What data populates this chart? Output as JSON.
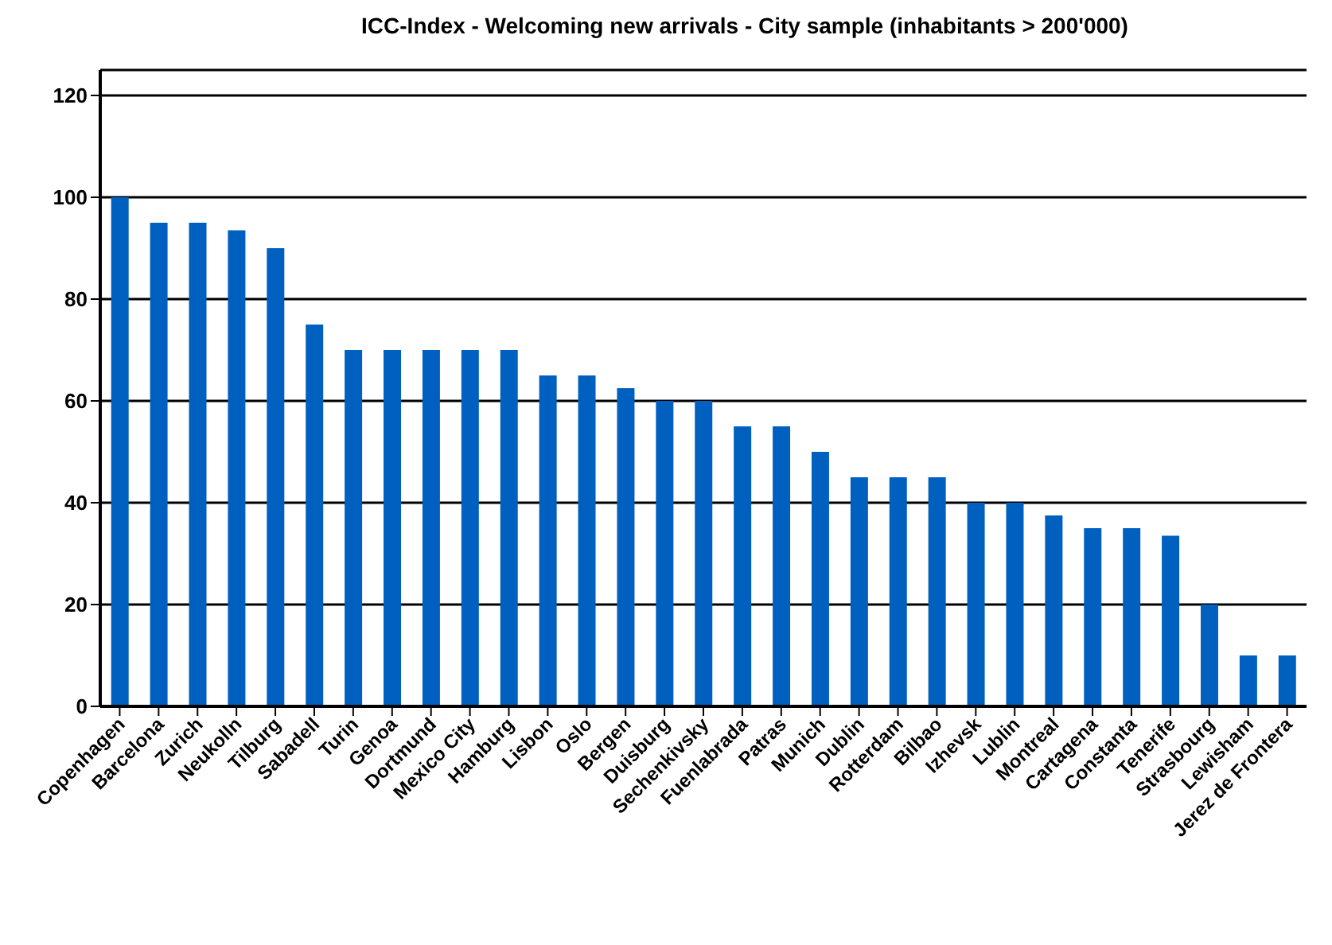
{
  "chart_data": {
    "type": "bar",
    "title": "ICC-Index - Welcoming new arrivals - City sample (inhabitants > 200'000)",
    "categories": [
      "Copenhagen",
      "Barcelona",
      "Zurich",
      "Neukolln",
      "Tilburg",
      "Sabadell",
      "Turin",
      "Genoa",
      "Dortmund",
      "Mexico City",
      "Hamburg",
      "Lisbon",
      "Oslo",
      "Bergen",
      "Duisburg",
      "Sechenkivsky",
      "Fuenlabrada",
      "Patras",
      "Munich",
      "Dublin",
      "Rotterdam",
      "Bilbao",
      "Izhevsk",
      "Lublin",
      "Montreal",
      "Cartagena",
      "Constanta",
      "Tenerife",
      "Strasbourg",
      "Lewisham",
      "Jerez de Frontera"
    ],
    "values": [
      100,
      95,
      95,
      93.5,
      90,
      75,
      70,
      70,
      70,
      70,
      70,
      65,
      65,
      62.5,
      60,
      60,
      55,
      55,
      50,
      45,
      45,
      45,
      40,
      40,
      37.5,
      35,
      35,
      33.5,
      20,
      10,
      10
    ],
    "color": "#0060c0",
    "ylim": [
      0,
      125
    ],
    "yticks": [
      0,
      20,
      40,
      60,
      80,
      100,
      120
    ],
    "grid": "y",
    "legend": false
  }
}
